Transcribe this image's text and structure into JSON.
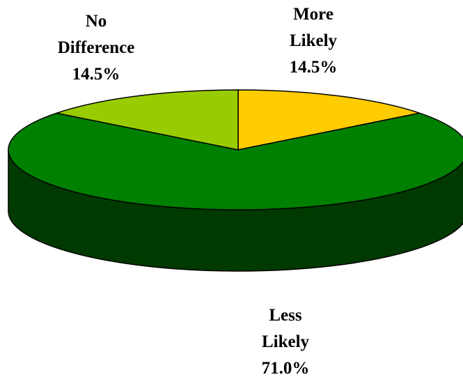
{
  "chart_data": {
    "type": "pie",
    "title": "",
    "three_d": true,
    "slices": [
      {
        "name": "More Likely",
        "label_lines": [
          "More",
          "Likely"
        ],
        "value": 14.5,
        "value_label": "14.5%",
        "color": "#ffcc00"
      },
      {
        "name": "Less Likely",
        "label_lines": [
          "Less",
          "Likely"
        ],
        "value": 71.0,
        "value_label": "71.0%",
        "color": "#008000"
      },
      {
        "name": "No Difference",
        "label_lines": [
          "No",
          "Difference"
        ],
        "value": 14.5,
        "value_label": "14.5%",
        "color": "#99cc00"
      }
    ],
    "legend": "none"
  }
}
